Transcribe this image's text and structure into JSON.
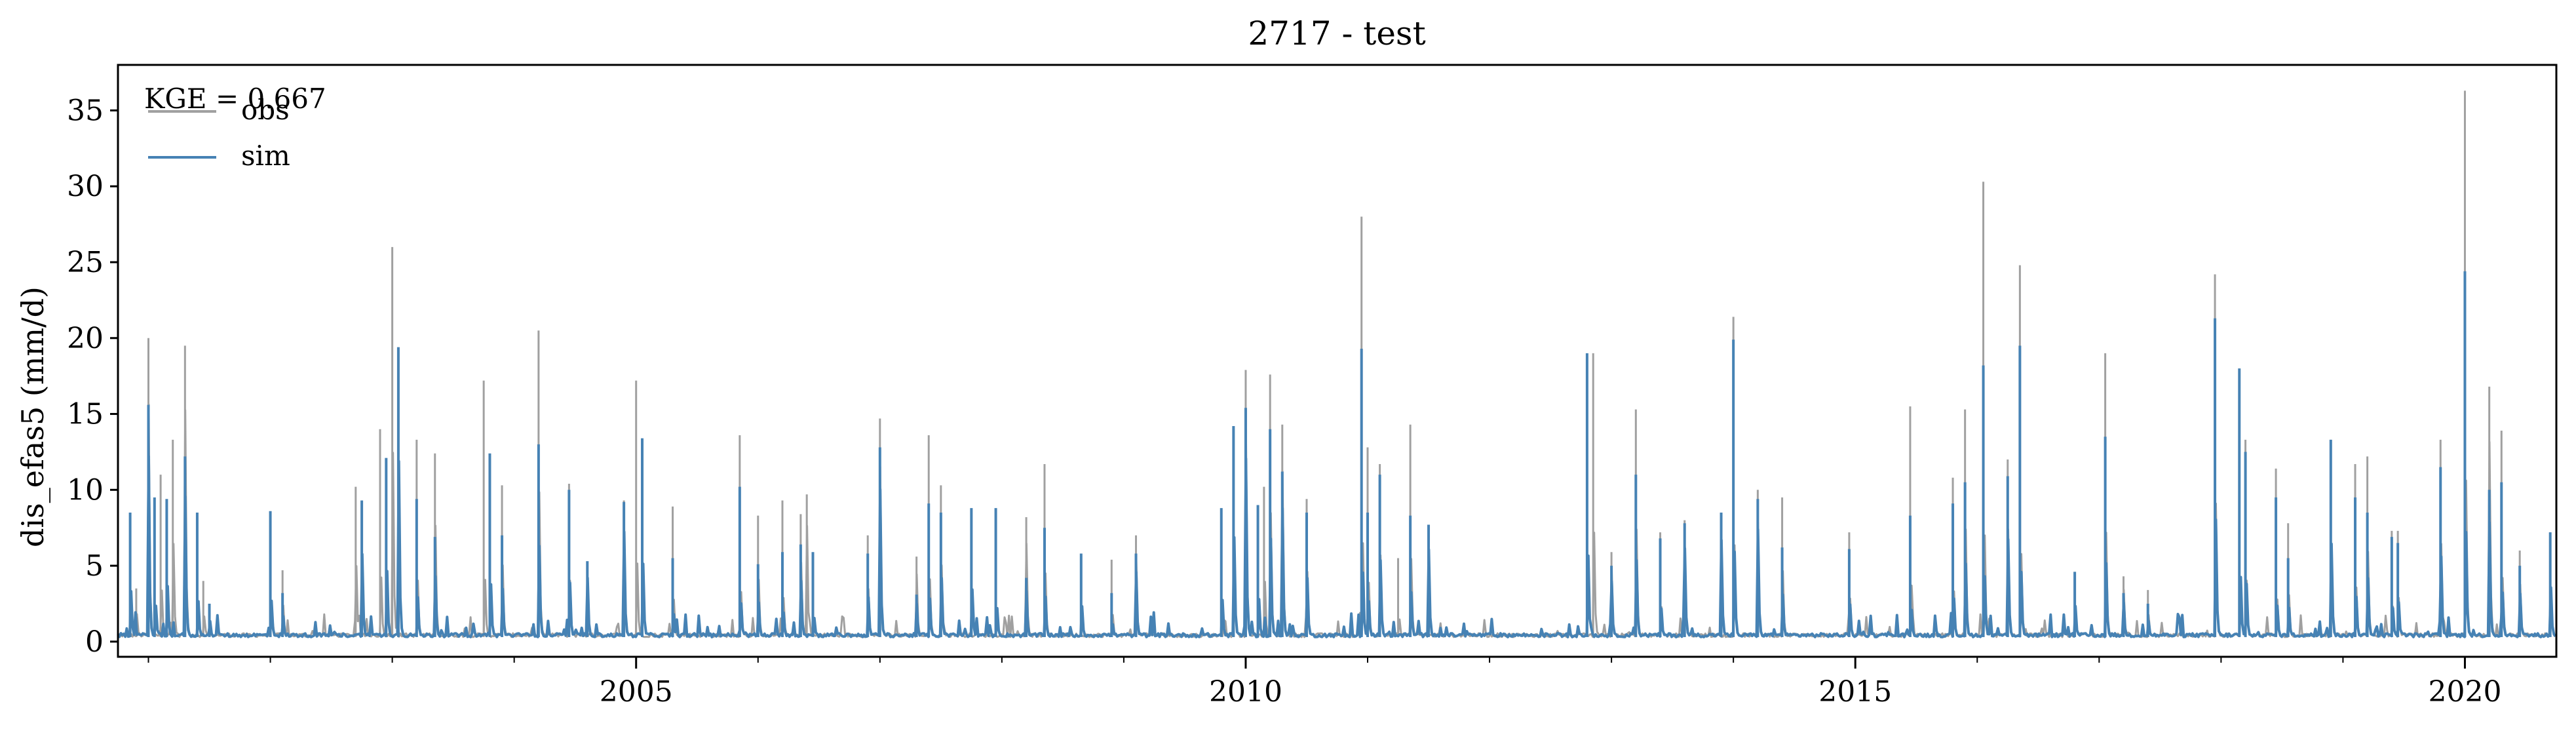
{
  "chart_data": {
    "type": "line",
    "title": "2717 - test",
    "xlabel": "",
    "ylabel": "dis_efas5 (mm/d)",
    "xlim": [
      2000.75,
      2020.75
    ],
    "ylim": [
      -1.0,
      38.0
    ],
    "x_ticks": [
      2005,
      2010,
      2015,
      2020
    ],
    "x_tick_labels": [
      "2005",
      "2010",
      "2015",
      "2020"
    ],
    "y_ticks": [
      0,
      5,
      10,
      15,
      20,
      25,
      30,
      35
    ],
    "y_tick_labels": [
      "0",
      "5",
      "10",
      "15",
      "20",
      "25",
      "30",
      "35"
    ],
    "annotation": "KGE = 0.667",
    "legend": {
      "position": "top-left",
      "entries": [
        "obs",
        "sim"
      ]
    },
    "grid": false,
    "colors": {
      "obs": "#a0a0a0",
      "sim": "#4682b4"
    },
    "baseline": 0.3,
    "series": [
      {
        "name": "obs",
        "peaks": [
          [
            2000.9,
            3.5
          ],
          [
            2001.0,
            20.0
          ],
          [
            2001.1,
            11.0
          ],
          [
            2001.2,
            13.3
          ],
          [
            2001.3,
            19.5
          ],
          [
            2001.45,
            4.0
          ],
          [
            2002.0,
            5.5
          ],
          [
            2002.1,
            4.7
          ],
          [
            2002.7,
            10.2
          ],
          [
            2002.9,
            14.0
          ],
          [
            2003.0,
            26.0
          ],
          [
            2003.2,
            13.3
          ],
          [
            2003.35,
            12.4
          ],
          [
            2003.75,
            17.2
          ],
          [
            2003.9,
            10.3
          ],
          [
            2004.2,
            20.5
          ],
          [
            2004.45,
            10.4
          ],
          [
            2004.9,
            9.3
          ],
          [
            2005.0,
            17.2
          ],
          [
            2005.3,
            8.9
          ],
          [
            2005.85,
            13.6
          ],
          [
            2006.0,
            8.3
          ],
          [
            2006.2,
            9.3
          ],
          [
            2006.35,
            8.4
          ],
          [
            2006.4,
            9.7
          ],
          [
            2006.9,
            7.0
          ],
          [
            2007.0,
            14.7
          ],
          [
            2007.3,
            5.6
          ],
          [
            2007.4,
            13.6
          ],
          [
            2007.5,
            10.3
          ],
          [
            2008.2,
            8.2
          ],
          [
            2008.35,
            11.7
          ],
          [
            2008.9,
            5.4
          ],
          [
            2009.1,
            7.0
          ],
          [
            2009.9,
            14.1
          ],
          [
            2010.0,
            17.9
          ],
          [
            2010.15,
            10.2
          ],
          [
            2010.2,
            17.6
          ],
          [
            2010.3,
            14.3
          ],
          [
            2010.5,
            9.4
          ],
          [
            2010.95,
            28.0
          ],
          [
            2011.0,
            12.8
          ],
          [
            2011.1,
            11.7
          ],
          [
            2011.25,
            5.5
          ],
          [
            2011.35,
            14.3
          ],
          [
            2012.85,
            19.0
          ],
          [
            2013.0,
            5.9
          ],
          [
            2013.2,
            15.3
          ],
          [
            2013.4,
            7.2
          ],
          [
            2013.6,
            8.0
          ],
          [
            2014.0,
            21.4
          ],
          [
            2014.2,
            10.0
          ],
          [
            2014.4,
            9.5
          ],
          [
            2014.95,
            7.2
          ],
          [
            2015.45,
            15.5
          ],
          [
            2015.8,
            10.8
          ],
          [
            2015.9,
            15.3
          ],
          [
            2016.05,
            30.3
          ],
          [
            2016.25,
            12.0
          ],
          [
            2016.35,
            24.8
          ],
          [
            2016.8,
            4.6
          ],
          [
            2017.05,
            19.0
          ],
          [
            2017.2,
            4.3
          ],
          [
            2017.4,
            3.4
          ],
          [
            2017.95,
            24.2
          ],
          [
            2018.15,
            18.0
          ],
          [
            2018.2,
            13.3
          ],
          [
            2018.45,
            11.4
          ],
          [
            2018.55,
            7.8
          ],
          [
            2018.9,
            13.3
          ],
          [
            2019.1,
            11.7
          ],
          [
            2019.2,
            12.2
          ],
          [
            2019.4,
            7.3
          ],
          [
            2019.45,
            7.3
          ],
          [
            2019.8,
            13.3
          ],
          [
            2020.0,
            36.3
          ],
          [
            2020.2,
            16.8
          ],
          [
            2020.3,
            13.9
          ],
          [
            2020.45,
            6.0
          ],
          [
            2020.7,
            7.2
          ]
        ]
      },
      {
        "name": "sim",
        "peaks": [
          [
            2000.85,
            8.5
          ],
          [
            2001.0,
            15.6
          ],
          [
            2001.05,
            9.5
          ],
          [
            2001.15,
            9.4
          ],
          [
            2001.3,
            12.2
          ],
          [
            2001.4,
            8.5
          ],
          [
            2001.5,
            2.5
          ],
          [
            2002.0,
            8.6
          ],
          [
            2002.1,
            3.2
          ],
          [
            2002.75,
            9.3
          ],
          [
            2002.95,
            12.1
          ],
          [
            2003.05,
            19.4
          ],
          [
            2003.2,
            9.4
          ],
          [
            2003.35,
            6.9
          ],
          [
            2003.8,
            12.4
          ],
          [
            2003.9,
            7.0
          ],
          [
            2004.2,
            13.0
          ],
          [
            2004.45,
            10.0
          ],
          [
            2004.6,
            5.3
          ],
          [
            2004.9,
            9.2
          ],
          [
            2005.05,
            13.4
          ],
          [
            2005.3,
            5.5
          ],
          [
            2005.85,
            10.2
          ],
          [
            2006.0,
            5.1
          ],
          [
            2006.2,
            5.9
          ],
          [
            2006.35,
            6.4
          ],
          [
            2006.45,
            5.9
          ],
          [
            2006.9,
            5.8
          ],
          [
            2007.0,
            12.8
          ],
          [
            2007.3,
            3.1
          ],
          [
            2007.4,
            9.1
          ],
          [
            2007.5,
            8.5
          ],
          [
            2007.75,
            8.8
          ],
          [
            2007.95,
            8.8
          ],
          [
            2008.2,
            4.2
          ],
          [
            2008.35,
            7.5
          ],
          [
            2008.65,
            5.8
          ],
          [
            2008.9,
            3.2
          ],
          [
            2009.1,
            5.8
          ],
          [
            2009.8,
            8.8
          ],
          [
            2009.9,
            14.2
          ],
          [
            2010.0,
            15.4
          ],
          [
            2010.1,
            9.0
          ],
          [
            2010.2,
            14.0
          ],
          [
            2010.3,
            11.2
          ],
          [
            2010.5,
            8.5
          ],
          [
            2010.95,
            19.3
          ],
          [
            2011.0,
            8.5
          ],
          [
            2011.1,
            11.0
          ],
          [
            2011.35,
            8.3
          ],
          [
            2011.5,
            7.7
          ],
          [
            2012.8,
            19.0
          ],
          [
            2013.0,
            5.0
          ],
          [
            2013.2,
            11.0
          ],
          [
            2013.4,
            6.8
          ],
          [
            2013.6,
            7.8
          ],
          [
            2013.9,
            8.5
          ],
          [
            2014.0,
            19.9
          ],
          [
            2014.2,
            9.4
          ],
          [
            2014.4,
            6.2
          ],
          [
            2014.95,
            6.1
          ],
          [
            2015.45,
            8.3
          ],
          [
            2015.8,
            9.1
          ],
          [
            2015.9,
            10.5
          ],
          [
            2016.05,
            18.2
          ],
          [
            2016.25,
            10.9
          ],
          [
            2016.35,
            19.5
          ],
          [
            2016.8,
            4.6
          ],
          [
            2017.05,
            13.5
          ],
          [
            2017.2,
            3.2
          ],
          [
            2017.4,
            2.5
          ],
          [
            2017.95,
            21.3
          ],
          [
            2018.15,
            18.0
          ],
          [
            2018.2,
            12.5
          ],
          [
            2018.45,
            9.5
          ],
          [
            2018.55,
            5.5
          ],
          [
            2018.9,
            13.3
          ],
          [
            2019.1,
            9.5
          ],
          [
            2019.2,
            8.5
          ],
          [
            2019.4,
            6.9
          ],
          [
            2019.45,
            6.5
          ],
          [
            2019.8,
            11.5
          ],
          [
            2020.0,
            24.4
          ],
          [
            2020.2,
            10.0
          ],
          [
            2020.3,
            10.5
          ],
          [
            2020.45,
            5.0
          ],
          [
            2020.7,
            7.2
          ]
        ]
      }
    ]
  }
}
